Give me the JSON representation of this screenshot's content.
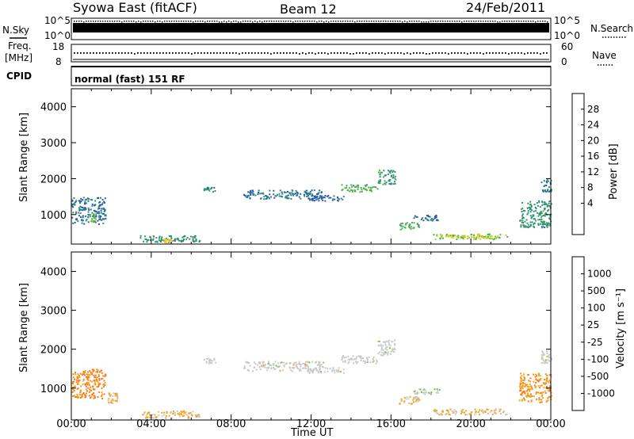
{
  "header": {
    "station": "Syowa East (fitACF)",
    "beam": "Beam 12",
    "date": "24/Feb/2011"
  },
  "noise_panel": {
    "left_label": "N.Sky",
    "right_label": "N.Search",
    "tick_top": "10^5",
    "tick_bottom": "10^0"
  },
  "freq_panel": {
    "left_label_1": "Freq.",
    "left_label_2": "[MHz]",
    "right_label": "Nave",
    "left_ticks": [
      "18",
      "8"
    ],
    "right_ticks": [
      "60",
      "0"
    ]
  },
  "cpid_panel": {
    "label": "CPID",
    "text": "normal (fast) 151 RF"
  },
  "axes": {
    "ylabel": "Slant Range [km]",
    "xlabel": "Time UT",
    "yticks": [
      "4000",
      "3000",
      "2000",
      "1000"
    ],
    "xticks": [
      "00:00",
      "04:00",
      "08:00",
      "12:00",
      "16:00",
      "20:00",
      "00:00"
    ]
  },
  "power_scale": {
    "label": "Power [dB]",
    "ticks": [
      "28",
      "24",
      "20",
      "16",
      "12",
      "8",
      "4"
    ],
    "colors": [
      "#ee1111",
      "#ff5a14",
      "#ff9a1a",
      "#f2cc1c",
      "#a7d42a",
      "#4fb04a",
      "#2d8f74",
      "#2a5cae",
      "#1a2ae8"
    ]
  },
  "velocity_scale": {
    "label": "Velocity [m s⁻¹]",
    "ticks": [
      "1000",
      "500",
      "100",
      "25",
      "-25",
      "-100",
      "-500",
      "-1000"
    ],
    "colors": [
      "#1a2ae8",
      "#2a5cae",
      "#2d8f74",
      "#66c23a",
      "#c8c8c8",
      "#f2a21c",
      "#ff7a14",
      "#ff3a10",
      "#ee1111"
    ]
  },
  "chart_data": [
    {
      "type": "heatmap",
      "title": "Power",
      "xlabel": "Time UT",
      "ylabel": "Slant Range [km]",
      "xlim": [
        0,
        24
      ],
      "ylim": [
        180,
        4500
      ],
      "colorbar_label": "Power [dB]",
      "colorbar_range": [
        0,
        32
      ],
      "echo_regions": [
        {
          "t0": 0.0,
          "t1": 1.7,
          "r0": 750,
          "r1": 1500,
          "value": 7
        },
        {
          "t0": 0.9,
          "t1": 1.2,
          "r0": 800,
          "r1": 1050,
          "value": 14
        },
        {
          "t0": 3.4,
          "t1": 6.4,
          "r0": 250,
          "r1": 430,
          "value": 9
        },
        {
          "t0": 4.6,
          "t1": 5.1,
          "r0": 230,
          "r1": 330,
          "value": 20
        },
        {
          "t0": 6.6,
          "t1": 7.2,
          "r0": 1650,
          "r1": 1800,
          "value": 8
        },
        {
          "t0": 8.6,
          "t1": 12.6,
          "r0": 1450,
          "r1": 1700,
          "value": 7
        },
        {
          "t0": 11.8,
          "t1": 13.6,
          "r0": 1400,
          "r1": 1550,
          "value": 6
        },
        {
          "t0": 13.5,
          "t1": 15.3,
          "r0": 1650,
          "r1": 1850,
          "value": 12
        },
        {
          "t0": 15.3,
          "t1": 16.2,
          "r0": 1850,
          "r1": 2250,
          "value": 10
        },
        {
          "t0": 16.4,
          "t1": 17.4,
          "r0": 600,
          "r1": 800,
          "value": 12
        },
        {
          "t0": 17.1,
          "t1": 18.4,
          "r0": 850,
          "r1": 1000,
          "value": 6
        },
        {
          "t0": 18.1,
          "t1": 21.8,
          "r0": 330,
          "r1": 480,
          "value": 14
        },
        {
          "t0": 18.7,
          "t1": 21.3,
          "r0": 370,
          "r1": 440,
          "value": 18
        },
        {
          "t0": 22.4,
          "t1": 24.0,
          "r0": 650,
          "r1": 1400,
          "value": 9
        },
        {
          "t0": 23.5,
          "t1": 24.0,
          "r0": 1650,
          "r1": 2000,
          "value": 8
        }
      ]
    },
    {
      "type": "heatmap",
      "title": "Velocity",
      "xlabel": "Time UT",
      "ylabel": "Slant Range [km]",
      "xlim": [
        0,
        24
      ],
      "ylim": [
        180,
        4500
      ],
      "colorbar_label": "Velocity [m s⁻¹]",
      "colorbar_range": [
        -1000,
        1000
      ],
      "echo_regions": [
        {
          "t0": 0.0,
          "t1": 1.7,
          "r0": 750,
          "r1": 1500,
          "value": -400
        },
        {
          "t0": 1.8,
          "t1": 2.3,
          "r0": 600,
          "r1": 900,
          "value": -150
        },
        {
          "t0": 3.4,
          "t1": 6.4,
          "r0": 250,
          "r1": 430,
          "value": -150
        },
        {
          "t0": 6.6,
          "t1": 7.2,
          "r0": 1650,
          "r1": 1800,
          "value": 0
        },
        {
          "t0": 8.6,
          "t1": 12.6,
          "r0": 1450,
          "r1": 1700,
          "value": 0
        },
        {
          "t0": 11.8,
          "t1": 13.6,
          "r0": 1400,
          "r1": 1550,
          "value": 0
        },
        {
          "t0": 13.5,
          "t1": 15.3,
          "r0": 1650,
          "r1": 1850,
          "value": 0
        },
        {
          "t0": 15.3,
          "t1": 16.2,
          "r0": 1850,
          "r1": 2250,
          "value": 0
        },
        {
          "t0": 16.4,
          "t1": 17.4,
          "r0": 600,
          "r1": 800,
          "value": -150
        },
        {
          "t0": 17.1,
          "t1": 18.4,
          "r0": 850,
          "r1": 1000,
          "value": 50
        },
        {
          "t0": 18.1,
          "t1": 21.8,
          "r0": 330,
          "r1": 480,
          "value": -150
        },
        {
          "t0": 22.4,
          "t1": 24.0,
          "r0": 650,
          "r1": 1400,
          "value": -300
        },
        {
          "t0": 23.5,
          "t1": 24.0,
          "r0": 1650,
          "r1": 2000,
          "value": 0
        }
      ]
    }
  ]
}
